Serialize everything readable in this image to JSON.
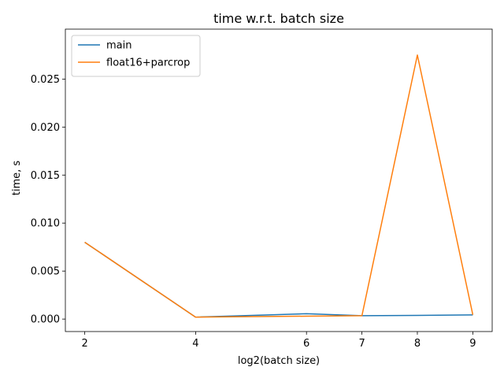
{
  "chart_data": {
    "type": "line",
    "title": "time w.r.t. batch size",
    "xlabel": "log2(batch size)",
    "ylabel": "time, s",
    "x": [
      2,
      4,
      6,
      7,
      8,
      9
    ],
    "xticks": [
      "2",
      "4",
      "6",
      "7",
      "8",
      "9"
    ],
    "yticks": [
      0.0,
      0.005,
      0.01,
      0.015,
      0.02,
      0.025
    ],
    "ytick_labels": [
      "0.000",
      "0.005",
      "0.010",
      "0.015",
      "0.020",
      "0.025"
    ],
    "xlim": [
      1.65,
      9.35
    ],
    "ylim": [
      -0.0013,
      0.0302
    ],
    "grid": false,
    "legend_position": "upper-left",
    "series": [
      {
        "name": "main",
        "color": "#1f77b4",
        "values": [
          0.008,
          0.0002,
          0.00055,
          0.00035,
          0.00038,
          0.00043
        ]
      },
      {
        "name": "float16+parcrop",
        "color": "#ff7f0e",
        "values": [
          0.008,
          0.0002,
          0.0003,
          0.00035,
          0.0275,
          0.00045
        ]
      }
    ]
  }
}
